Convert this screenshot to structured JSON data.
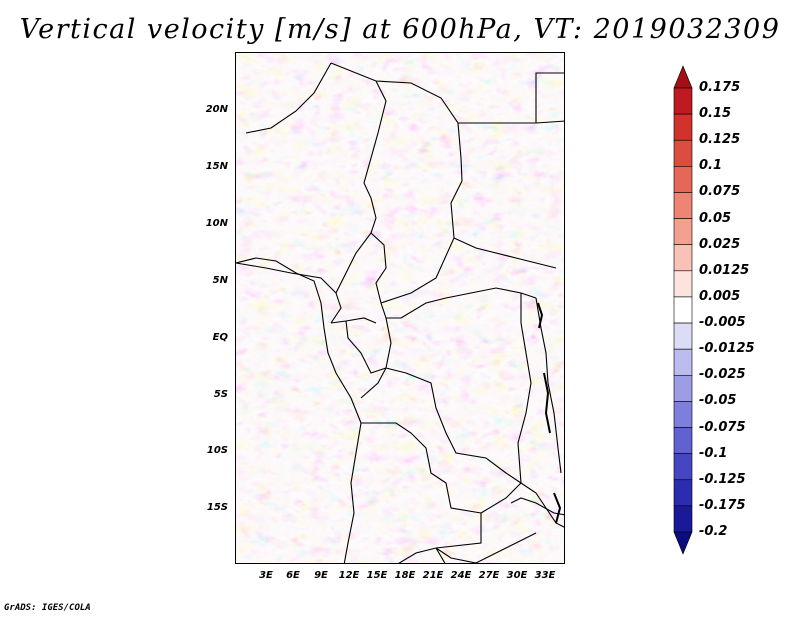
{
  "title": "Vertical velocity [m/s] at 600hPa, VT: 2019032309",
  "credit": "GrADS: IGES/COLA",
  "map": {
    "variable": "Vertical velocity",
    "units": "m/s",
    "level": "600hPa",
    "valid_time": "2019032309",
    "lat_labels": [
      "20N",
      "15N",
      "10N",
      "5N",
      "EQ",
      "5S",
      "10S",
      "15S"
    ],
    "lon_labels": [
      "3E",
      "6E",
      "9E",
      "12E",
      "15E",
      "18E",
      "21E",
      "24E",
      "27E",
      "30E",
      "33E"
    ]
  },
  "colorbar": {
    "labels": [
      "0.175",
      "0.15",
      "0.125",
      "0.1",
      "0.075",
      "0.05",
      "0.025",
      "0.0125",
      "0.005",
      "-0.005",
      "-0.0125",
      "-0.025",
      "-0.05",
      "-0.075",
      "-0.1",
      "-0.125",
      "-0.175",
      "-0.2"
    ],
    "colors": [
      "#a50f15",
      "#be1a20",
      "#d0322c",
      "#dc4d40",
      "#e56757",
      "#ee8472",
      "#f4a08f",
      "#f9c2b6",
      "#fde3dd",
      "#ffffff",
      "#dcdcf5",
      "#bcbcef",
      "#9d9de6",
      "#7e7edc",
      "#6161d2",
      "#4646c3",
      "#2c2cb0",
      "#1a1a99",
      "#0c0c80"
    ]
  }
}
